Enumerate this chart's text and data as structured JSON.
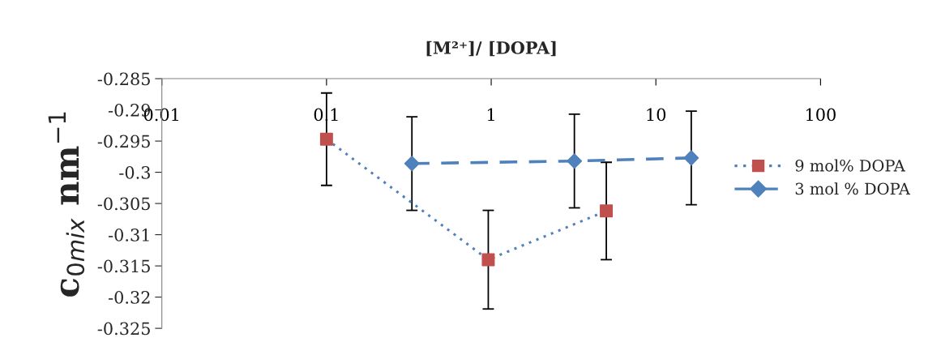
{
  "chart_data": {
    "type": "line",
    "xlabel": "[M²⁺]/ [DOPA]",
    "ylabel": "c$_{0mix}$ nm$^{−1}$",
    "log": "x",
    "xlim": [
      0.01,
      100
    ],
    "xticks": [
      0.01,
      0.1,
      1,
      10,
      100
    ],
    "ylim": [
      -0.325,
      -0.285
    ],
    "yticks": [
      -0.325,
      -0.32,
      -0.315,
      -0.31,
      -0.305,
      -0.3,
      -0.295,
      -0.29,
      -0.285
    ],
    "grid": false,
    "legend": "right",
    "series": [
      {
        "name": "9 mol% DOPA",
        "color": "#4f81bd",
        "colors": [
          "#c0504d",
          "#c0504d",
          "#c0504d"
        ],
        "marker": "square",
        "line_style": "dotted",
        "x": [
          0.1,
          0.96,
          5.0
        ],
        "values": [
          -0.2947,
          -0.314,
          -0.3062
        ],
        "errors": [
          0.0074,
          0.0079,
          0.0078
        ]
      },
      {
        "name": "3 mol % DOPA",
        "color": "#4f81bd",
        "marker": "diamond",
        "line_style": "dashed",
        "x": [
          0.33,
          3.2,
          16.4
        ],
        "values": [
          -0.2986,
          -0.2982,
          -0.2977
        ],
        "errors": [
          0.0075,
          0.0075,
          0.0075
        ]
      }
    ]
  }
}
